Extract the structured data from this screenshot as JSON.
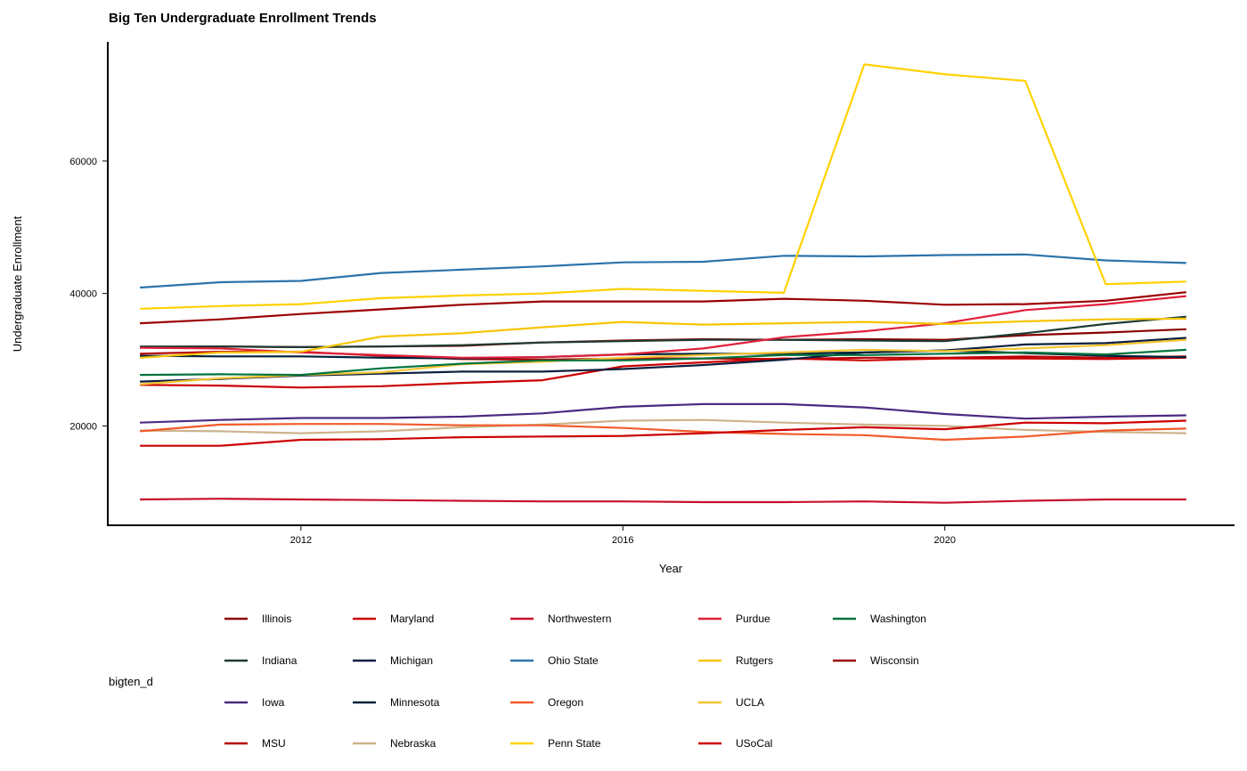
{
  "chart_data": {
    "type": "line",
    "title": "Big Ten Undergraduate Enrollment Trends",
    "xlabel": "Year",
    "ylabel": "Undergraduate Enrollment",
    "xlim": [
      2009.6,
      2023.6
    ],
    "ylim": [
      5000,
      78000
    ],
    "x_ticks": [
      2012,
      2016,
      2020
    ],
    "y_ticks": [
      20000,
      40000,
      60000
    ],
    "x_tick_labels": [
      "2012",
      "2016",
      "2020"
    ],
    "y_tick_labels": [
      "20000",
      "40000",
      "60000"
    ],
    "grid": false,
    "legend_title": "bigten_d",
    "legend_position": "bottom",
    "x": [
      2010,
      2011,
      2012,
      2013,
      2014,
      2015,
      2016,
      2017,
      2018,
      2019,
      2020,
      2021,
      2022,
      2023
    ],
    "series": [
      {
        "name": "Illinois",
        "color": "#8B0000",
        "values": [
          31900,
          32000,
          31900,
          32000,
          32100,
          32600,
          32900,
          33100,
          33000,
          33100,
          33000,
          33700,
          34100,
          34600
        ]
      },
      {
        "name": "Indiana",
        "color": "#1E3B33",
        "values": [
          32000,
          32000,
          31900,
          32000,
          32200,
          32600,
          32800,
          33000,
          33000,
          32900,
          32800,
          34000,
          35400,
          36500
        ]
      },
      {
        "name": "Iowa",
        "color": "#4B2A80",
        "values": [
          20500,
          20900,
          21200,
          21200,
          21400,
          21900,
          22900,
          23300,
          23300,
          22800,
          21800,
          21100,
          21400,
          21600
        ]
      },
      {
        "name": "MSU",
        "color": "#B50000",
        "values": [
          30900,
          31200,
          31200,
          30600,
          30100,
          30000,
          30200,
          30200,
          30100,
          30300,
          30300,
          30500,
          30300,
          30500
        ]
      },
      {
        "name": "Maryland",
        "color": "#CC0000",
        "values": [
          26200,
          26100,
          25800,
          26000,
          26500,
          26900,
          29000,
          29600,
          30200,
          29900,
          30200,
          30200,
          30100,
          30300
        ]
      },
      {
        "name": "Michigan",
        "color": "#0B1F3F",
        "values": [
          26700,
          27100,
          27600,
          27900,
          28200,
          28200,
          28600,
          29200,
          30000,
          31100,
          31400,
          32300,
          32500,
          33300
        ]
      },
      {
        "name": "Minnesota",
        "color": "#00213A",
        "values": [
          30600,
          30500,
          30500,
          30300,
          30200,
          30400,
          30800,
          30900,
          30900,
          31100,
          31400,
          31000,
          30600,
          30400
        ]
      },
      {
        "name": "Nebraska",
        "color": "#CDB38B",
        "values": [
          19300,
          19200,
          18900,
          19200,
          19800,
          20200,
          20800,
          20900,
          20500,
          20200,
          20000,
          19400,
          19100,
          18900
        ]
      },
      {
        "name": "Northwestern",
        "color": "#C8102E",
        "values": [
          8900,
          9000,
          8900,
          8800,
          8700,
          8600,
          8600,
          8500,
          8500,
          8600,
          8400,
          8700,
          8900,
          8900
        ]
      },
      {
        "name": "Ohio State",
        "color": "#2C73AA",
        "values": [
          40900,
          41700,
          41900,
          43100,
          43600,
          44100,
          44700,
          44800,
          45700,
          45600,
          45800,
          45900,
          45000,
          44600
        ]
      },
      {
        "name": "Oregon",
        "color": "#F15A29",
        "values": [
          19200,
          20200,
          20300,
          20300,
          20100,
          20100,
          19700,
          19100,
          18800,
          18600,
          17900,
          18400,
          19300,
          19600
        ]
      },
      {
        "name": "Penn State",
        "color": "#FFD100",
        "values": [
          37700,
          38100,
          38400,
          39300,
          39700,
          40000,
          40700,
          40400,
          40100,
          74600,
          73100,
          72100,
          41400,
          41800
        ]
      },
      {
        "name": "Purdue",
        "color": "#E0203A",
        "values": [
          31800,
          31700,
          31100,
          30700,
          30300,
          30400,
          30800,
          31700,
          33400,
          34300,
          35500,
          37500,
          38400,
          39600
        ]
      },
      {
        "name": "Rutgers",
        "color": "#F7C400",
        "values": [
          30300,
          31100,
          31200,
          33500,
          34000,
          34900,
          35700,
          35300,
          35500,
          35700,
          35400,
          35800,
          36100,
          36200
        ]
      },
      {
        "name": "UCLA",
        "color": "#F4C430",
        "values": [
          26300,
          27200,
          27700,
          28100,
          29300,
          29700,
          30300,
          30700,
          31100,
          31500,
          31300,
          31700,
          32200,
          33000
        ]
      },
      {
        "name": "USoCal",
        "color": "#CC0000",
        "values": [
          17000,
          17000,
          17900,
          18000,
          18300,
          18400,
          18500,
          18900,
          19400,
          19800,
          19500,
          20500,
          20400,
          20800
        ]
      },
      {
        "name": "Washington",
        "color": "#00733D",
        "values": [
          27700,
          27800,
          27700,
          28700,
          29400,
          29900,
          29900,
          30200,
          30700,
          30700,
          30900,
          31100,
          30800,
          31500
        ]
      },
      {
        "name": "Wisconsin",
        "color": "#9B0000",
        "values": [
          35500,
          36100,
          36900,
          37600,
          38300,
          38800,
          38800,
          38800,
          39200,
          38900,
          38300,
          38400,
          38900,
          40200
        ]
      }
    ]
  }
}
